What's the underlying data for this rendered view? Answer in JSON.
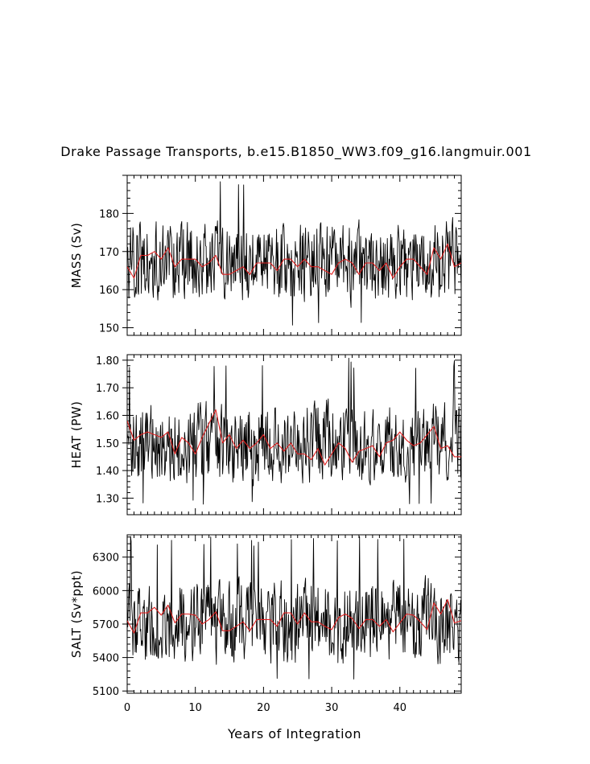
{
  "title": "Drake Passage Transports, b.e15.B1850_WW3.f09_g16.langmuir.001",
  "chart_data": [
    {
      "type": "line",
      "ylabel": "MASS (Sv)",
      "xlabel": "",
      "xlim": [
        0,
        49
      ],
      "ylim": [
        148,
        190
      ],
      "yticks": [
        150,
        160,
        170,
        180
      ],
      "ytick_labels": [
        "150",
        "160",
        "170",
        "180"
      ],
      "series": [
        {
          "color": "#000000",
          "resolution": "monthly",
          "mean": 167,
          "amp": 9.5,
          "min": 150,
          "max": 190
        },
        {
          "color": "#e02020",
          "resolution": "annual",
          "x": [
            0,
            1,
            2,
            3,
            4,
            5,
            6,
            7,
            8,
            9,
            10,
            11,
            12,
            13,
            14,
            15,
            16,
            17,
            18,
            19,
            20,
            21,
            22,
            23,
            24,
            25,
            26,
            27,
            28,
            29,
            30,
            31,
            32,
            33,
            34,
            35,
            36,
            37,
            38,
            39,
            40,
            41,
            42,
            43,
            44,
            45,
            46,
            47,
            48,
            49
          ],
          "values": [
            166,
            163,
            169,
            169,
            170,
            168,
            171,
            166,
            168,
            168,
            168,
            166,
            167,
            169,
            164,
            164,
            165,
            166,
            164,
            167,
            167,
            167,
            165,
            168,
            168,
            166,
            168,
            166,
            166,
            165,
            164,
            167,
            168,
            167,
            164,
            167,
            167,
            165,
            167,
            163,
            166,
            168,
            168,
            166,
            164,
            171,
            168,
            172,
            166,
            167
          ]
        }
      ]
    },
    {
      "type": "line",
      "ylabel": "HEAT (PW)",
      "xlabel": "",
      "xlim": [
        0,
        49
      ],
      "ylim": [
        1.24,
        1.82
      ],
      "yticks": [
        1.3,
        1.4,
        1.5,
        1.6,
        1.7,
        1.8
      ],
      "ytick_labels": [
        "1.30",
        "1.40",
        "1.50",
        "1.60",
        "1.70",
        "1.80"
      ],
      "series": [
        {
          "color": "#000000",
          "resolution": "monthly",
          "mean": 1.5,
          "amp": 0.13,
          "min": 1.26,
          "max": 1.81
        },
        {
          "color": "#e02020",
          "resolution": "annual",
          "x": [
            0,
            1,
            2,
            3,
            4,
            5,
            6,
            7,
            8,
            9,
            10,
            11,
            12,
            13,
            14,
            15,
            16,
            17,
            18,
            19,
            20,
            21,
            22,
            23,
            24,
            25,
            26,
            27,
            28,
            29,
            30,
            31,
            32,
            33,
            34,
            35,
            36,
            37,
            38,
            39,
            40,
            41,
            42,
            43,
            44,
            45,
            46,
            47,
            48,
            49
          ],
          "values": [
            1.58,
            1.51,
            1.53,
            1.54,
            1.53,
            1.52,
            1.54,
            1.46,
            1.52,
            1.5,
            1.46,
            1.52,
            1.57,
            1.62,
            1.5,
            1.53,
            1.48,
            1.51,
            1.48,
            1.5,
            1.53,
            1.48,
            1.5,
            1.47,
            1.5,
            1.46,
            1.46,
            1.44,
            1.48,
            1.42,
            1.46,
            1.5,
            1.48,
            1.43,
            1.47,
            1.48,
            1.49,
            1.45,
            1.5,
            1.51,
            1.54,
            1.51,
            1.49,
            1.5,
            1.53,
            1.56,
            1.48,
            1.49,
            1.45,
            1.45
          ]
        }
      ]
    },
    {
      "type": "line",
      "ylabel": "SALT (Sv*ppt)",
      "xlabel": "Years of Integration",
      "xlim": [
        0,
        49
      ],
      "ylim": [
        5080,
        6500
      ],
      "yticks": [
        5100,
        5400,
        5700,
        6000,
        6300
      ],
      "ytick_labels": [
        "5100",
        "5400",
        "5700",
        "6000",
        "6300"
      ],
      "xticks": [
        0,
        10,
        20,
        30,
        40
      ],
      "xtick_labels": [
        "0",
        "10",
        "20",
        "30",
        "40"
      ],
      "series": [
        {
          "color": "#000000",
          "resolution": "monthly",
          "mean": 5720,
          "amp": 330,
          "min": 5130,
          "max": 6490
        },
        {
          "color": "#e02020",
          "resolution": "annual",
          "x": [
            0,
            1,
            2,
            3,
            4,
            5,
            6,
            7,
            8,
            9,
            10,
            11,
            12,
            13,
            14,
            15,
            16,
            17,
            18,
            19,
            20,
            21,
            22,
            23,
            24,
            25,
            26,
            27,
            28,
            29,
            30,
            31,
            32,
            33,
            34,
            35,
            36,
            37,
            38,
            39,
            40,
            41,
            42,
            43,
            44,
            45,
            46,
            47,
            48,
            49
          ],
          "values": [
            5730,
            5620,
            5800,
            5800,
            5850,
            5780,
            5870,
            5710,
            5790,
            5790,
            5780,
            5700,
            5740,
            5810,
            5640,
            5640,
            5680,
            5720,
            5640,
            5740,
            5740,
            5740,
            5680,
            5800,
            5800,
            5700,
            5800,
            5720,
            5720,
            5680,
            5650,
            5760,
            5790,
            5750,
            5660,
            5740,
            5740,
            5680,
            5740,
            5630,
            5710,
            5790,
            5780,
            5720,
            5650,
            5890,
            5790,
            5920,
            5710,
            5730
          ]
        }
      ]
    }
  ]
}
